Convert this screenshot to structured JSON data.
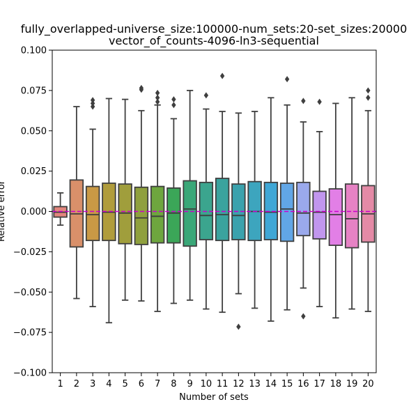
{
  "chart_data": {
    "type": "box",
    "title_line1": "fully_overlapped-universe_size:100000-num_sets:20-set_sizes:20000",
    "title_line2": "vector_of_counts-4096-ln3-sequential",
    "xlabel": "Number of sets",
    "ylabel": "Relative error",
    "ylim": [
      -0.1,
      0.1
    ],
    "yticks": [
      -0.1,
      -0.075,
      -0.05,
      -0.025,
      0.0,
      0.025,
      0.05,
      0.075,
      0.1
    ],
    "ytick_labels": [
      "−0.100",
      "−0.075",
      "−0.050",
      "−0.025",
      "0.000",
      "0.025",
      "0.050",
      "0.075",
      "0.100"
    ],
    "reference_line": {
      "y": 0.0,
      "color": "#cc00cc",
      "style": "dashed"
    },
    "categories": [
      "1",
      "2",
      "3",
      "4",
      "5",
      "6",
      "7",
      "8",
      "9",
      "10",
      "11",
      "12",
      "13",
      "14",
      "15",
      "16",
      "17",
      "18",
      "19",
      "20"
    ],
    "boxes": [
      {
        "min": -0.0085,
        "q1": -0.0035,
        "median": -0.0005,
        "q3": 0.003,
        "max": 0.0115,
        "outliers": [],
        "color": "#e2857d"
      },
      {
        "min": -0.054,
        "q1": -0.022,
        "median": -0.0015,
        "q3": 0.0195,
        "max": 0.065,
        "outliers": [],
        "color": "#d9906a"
      },
      {
        "min": -0.059,
        "q1": -0.018,
        "median": -0.002,
        "q3": 0.0155,
        "max": 0.051,
        "outliers": [
          0.065,
          0.067,
          0.069
        ],
        "color": "#c99945"
      },
      {
        "min": -0.069,
        "q1": -0.018,
        "median": -0.0005,
        "q3": 0.0175,
        "max": 0.07,
        "outliers": [],
        "color": "#b09c3c"
      },
      {
        "min": -0.055,
        "q1": -0.02,
        "median": -0.001,
        "q3": 0.017,
        "max": 0.0695,
        "outliers": [],
        "color": "#a09e3c"
      },
      {
        "min": -0.0555,
        "q1": -0.0205,
        "median": -0.004,
        "q3": 0.015,
        "max": 0.0625,
        "outliers": [
          0.0755,
          0.0765
        ],
        "color": "#8fa03e"
      },
      {
        "min": -0.062,
        "q1": -0.0195,
        "median": -0.003,
        "q3": 0.0155,
        "max": 0.066,
        "outliers": [
          0.068,
          0.0705,
          0.0735
        ],
        "color": "#6ea63e"
      },
      {
        "min": -0.057,
        "q1": -0.0195,
        "median": -0.001,
        "q3": 0.0145,
        "max": 0.0575,
        "outliers": [
          0.066,
          0.0695
        ],
        "color": "#3ba658"
      },
      {
        "min": -0.055,
        "q1": -0.0215,
        "median": 0.0015,
        "q3": 0.019,
        "max": 0.075,
        "outliers": [],
        "color": "#3aa778"
      },
      {
        "min": -0.0605,
        "q1": -0.0175,
        "median": -0.0025,
        "q3": 0.018,
        "max": 0.0635,
        "outliers": [
          0.072
        ],
        "color": "#3ba58e"
      },
      {
        "min": -0.0625,
        "q1": -0.018,
        "median": -0.002,
        "q3": 0.0205,
        "max": 0.062,
        "outliers": [
          0.084
        ],
        "color": "#3aa39e"
      },
      {
        "min": -0.051,
        "q1": -0.0175,
        "median": -0.0025,
        "q3": 0.017,
        "max": 0.061,
        "outliers": [
          -0.0715
        ],
        "color": "#3ba2ad"
      },
      {
        "min": -0.06,
        "q1": -0.018,
        "median": 0.0,
        "q3": 0.0185,
        "max": 0.062,
        "outliers": [],
        "color": "#3da5be"
      },
      {
        "min": -0.068,
        "q1": -0.0175,
        "median": -0.0005,
        "q3": 0.018,
        "max": 0.0705,
        "outliers": [],
        "color": "#3fa7d6"
      },
      {
        "min": -0.061,
        "q1": -0.0185,
        "median": 0.0015,
        "q3": 0.0175,
        "max": 0.066,
        "outliers": [
          0.082
        ],
        "color": "#61a6e6"
      },
      {
        "min": -0.0475,
        "q1": -0.015,
        "median": -0.001,
        "q3": 0.018,
        "max": 0.0555,
        "outliers": [
          0.0685,
          -0.065
        ],
        "color": "#9aa9ec"
      },
      {
        "min": -0.059,
        "q1": -0.017,
        "median": -0.0005,
        "q3": 0.0125,
        "max": 0.0495,
        "outliers": [
          0.068
        ],
        "color": "#c196ee"
      },
      {
        "min": -0.066,
        "q1": -0.021,
        "median": -0.002,
        "q3": 0.014,
        "max": 0.067,
        "outliers": [],
        "color": "#e27fe6"
      },
      {
        "min": -0.0605,
        "q1": -0.0225,
        "median": -0.0045,
        "q3": 0.017,
        "max": 0.0705,
        "outliers": [],
        "color": "#e682c4"
      },
      {
        "min": -0.062,
        "q1": -0.019,
        "median": -0.0015,
        "q3": 0.016,
        "max": 0.0625,
        "outliers": [
          0.0705,
          0.075
        ],
        "color": "#e48aa6"
      }
    ]
  }
}
